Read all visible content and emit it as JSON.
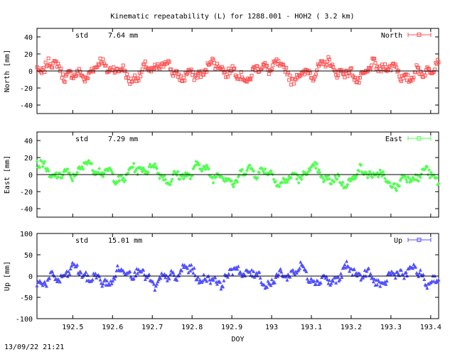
{
  "title": "Kinematic repeatability (L) for 1288.001 - HOH2  (  3.2 km)",
  "footer": "13/09/22 21:21",
  "chart_data": [
    {
      "type": "scatter",
      "series": [
        {
          "name": "North",
          "color": "#ff5050",
          "marker": "square-errorbar"
        }
      ],
      "stat": {
        "label": "std",
        "value": "7.64 mm"
      },
      "ylabel": "North [mm]",
      "ylim": [
        -50,
        50
      ],
      "yticks": [
        40,
        20,
        0,
        -20,
        -40
      ],
      "xlim": [
        192.41,
        193.42
      ],
      "noise_amplitude_mm": 7.64
    },
    {
      "type": "scatter",
      "series": [
        {
          "name": "East",
          "color": "#50ff50",
          "marker": "diamond-errorbar"
        }
      ],
      "stat": {
        "label": "std",
        "value": "7.29 mm"
      },
      "ylabel": "East [mm]",
      "ylim": [
        -50,
        50
      ],
      "yticks": [
        40,
        20,
        0,
        -20,
        -40
      ],
      "xlim": [
        192.41,
        193.42
      ],
      "noise_amplitude_mm": 7.29
    },
    {
      "type": "scatter",
      "series": [
        {
          "name": "Up",
          "color": "#5050ff",
          "marker": "triangle-errorbar"
        }
      ],
      "stat": {
        "label": "std",
        "value": "15.01 mm"
      },
      "ylabel": "Up [mm]",
      "xlabel": "DOY",
      "ylim": [
        -100,
        100
      ],
      "yticks": [
        100,
        50,
        0,
        -50,
        -100
      ],
      "xlim": [
        192.41,
        193.42
      ],
      "xticks": [
        192.5,
        192.6,
        192.7,
        192.8,
        192.9,
        193,
        193.1,
        193.2,
        193.3,
        193.4
      ],
      "noise_amplitude_mm": 15.01
    }
  ]
}
